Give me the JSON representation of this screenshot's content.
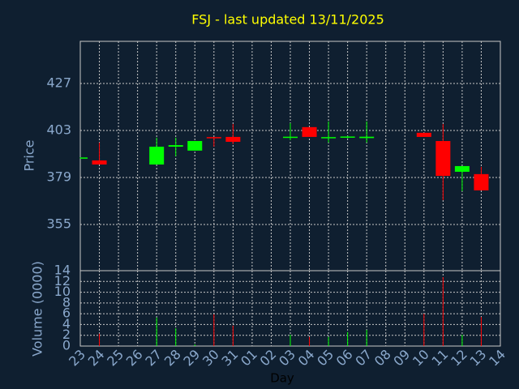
{
  "chart_data": {
    "type": "candlestick",
    "title": "FSJ - last updated 13/11/2025",
    "x_label": "Day",
    "y_label": "Price",
    "y2_label": "Volume (0000)",
    "categories": [
      "23",
      "24",
      "25",
      "26",
      "27",
      "28",
      "29",
      "30",
      "31",
      "01",
      "02",
      "03",
      "04",
      "05",
      "06",
      "07",
      "08",
      "09",
      "10",
      "11",
      "12",
      "13",
      "14"
    ],
    "open": [
      388.8,
      387.7,
      null,
      null,
      385.6,
      394.7,
      392.7,
      399.6,
      399.7,
      null,
      null,
      399.2,
      404.7,
      399.1,
      399.4,
      399.1,
      null,
      null,
      401.8,
      397.6,
      381.9,
      380.7,
      null
    ],
    "high": [
      389.3,
      396.8,
      null,
      null,
      399.3,
      399.3,
      397.6,
      399.6,
      406.3,
      null,
      null,
      406.7,
      404.7,
      407.6,
      400.2,
      407.6,
      null,
      null,
      401.8,
      406.3,
      384.8,
      384.4,
      null
    ],
    "low": [
      388.7,
      385.6,
      null,
      null,
      385.6,
      389.8,
      392.7,
      394.7,
      396.0,
      null,
      null,
      398.0,
      399.7,
      396.8,
      399.0,
      396.8,
      null,
      null,
      399.7,
      367.4,
      372.0,
      372.4,
      null
    ],
    "close": [
      389.2,
      385.6,
      null,
      null,
      394.7,
      395.5,
      397.6,
      399.0,
      397.2,
      null,
      null,
      399.8,
      399.7,
      399.6,
      399.9,
      399.8,
      null,
      null,
      399.7,
      379.8,
      384.8,
      372.4,
      null
    ],
    "volume": [
      0,
      2.3,
      null,
      null,
      5.3,
      3.3,
      0.3,
      5.9,
      3.8,
      null,
      null,
      2.1,
      1.7,
      1.7,
      2.6,
      3.0,
      null,
      null,
      6.0,
      12.8,
      2.1,
      5.4,
      null
    ],
    "up_color": "#00ff00",
    "down_color": "#ff0000",
    "ylim": [
      331.4,
      448.5
    ],
    "yticks": [
      355,
      379,
      403,
      427
    ],
    "y2lim": [
      0,
      14
    ],
    "y2ticks": [
      0,
      2,
      4,
      6,
      8,
      10,
      12,
      14
    ],
    "grid": true
  }
}
